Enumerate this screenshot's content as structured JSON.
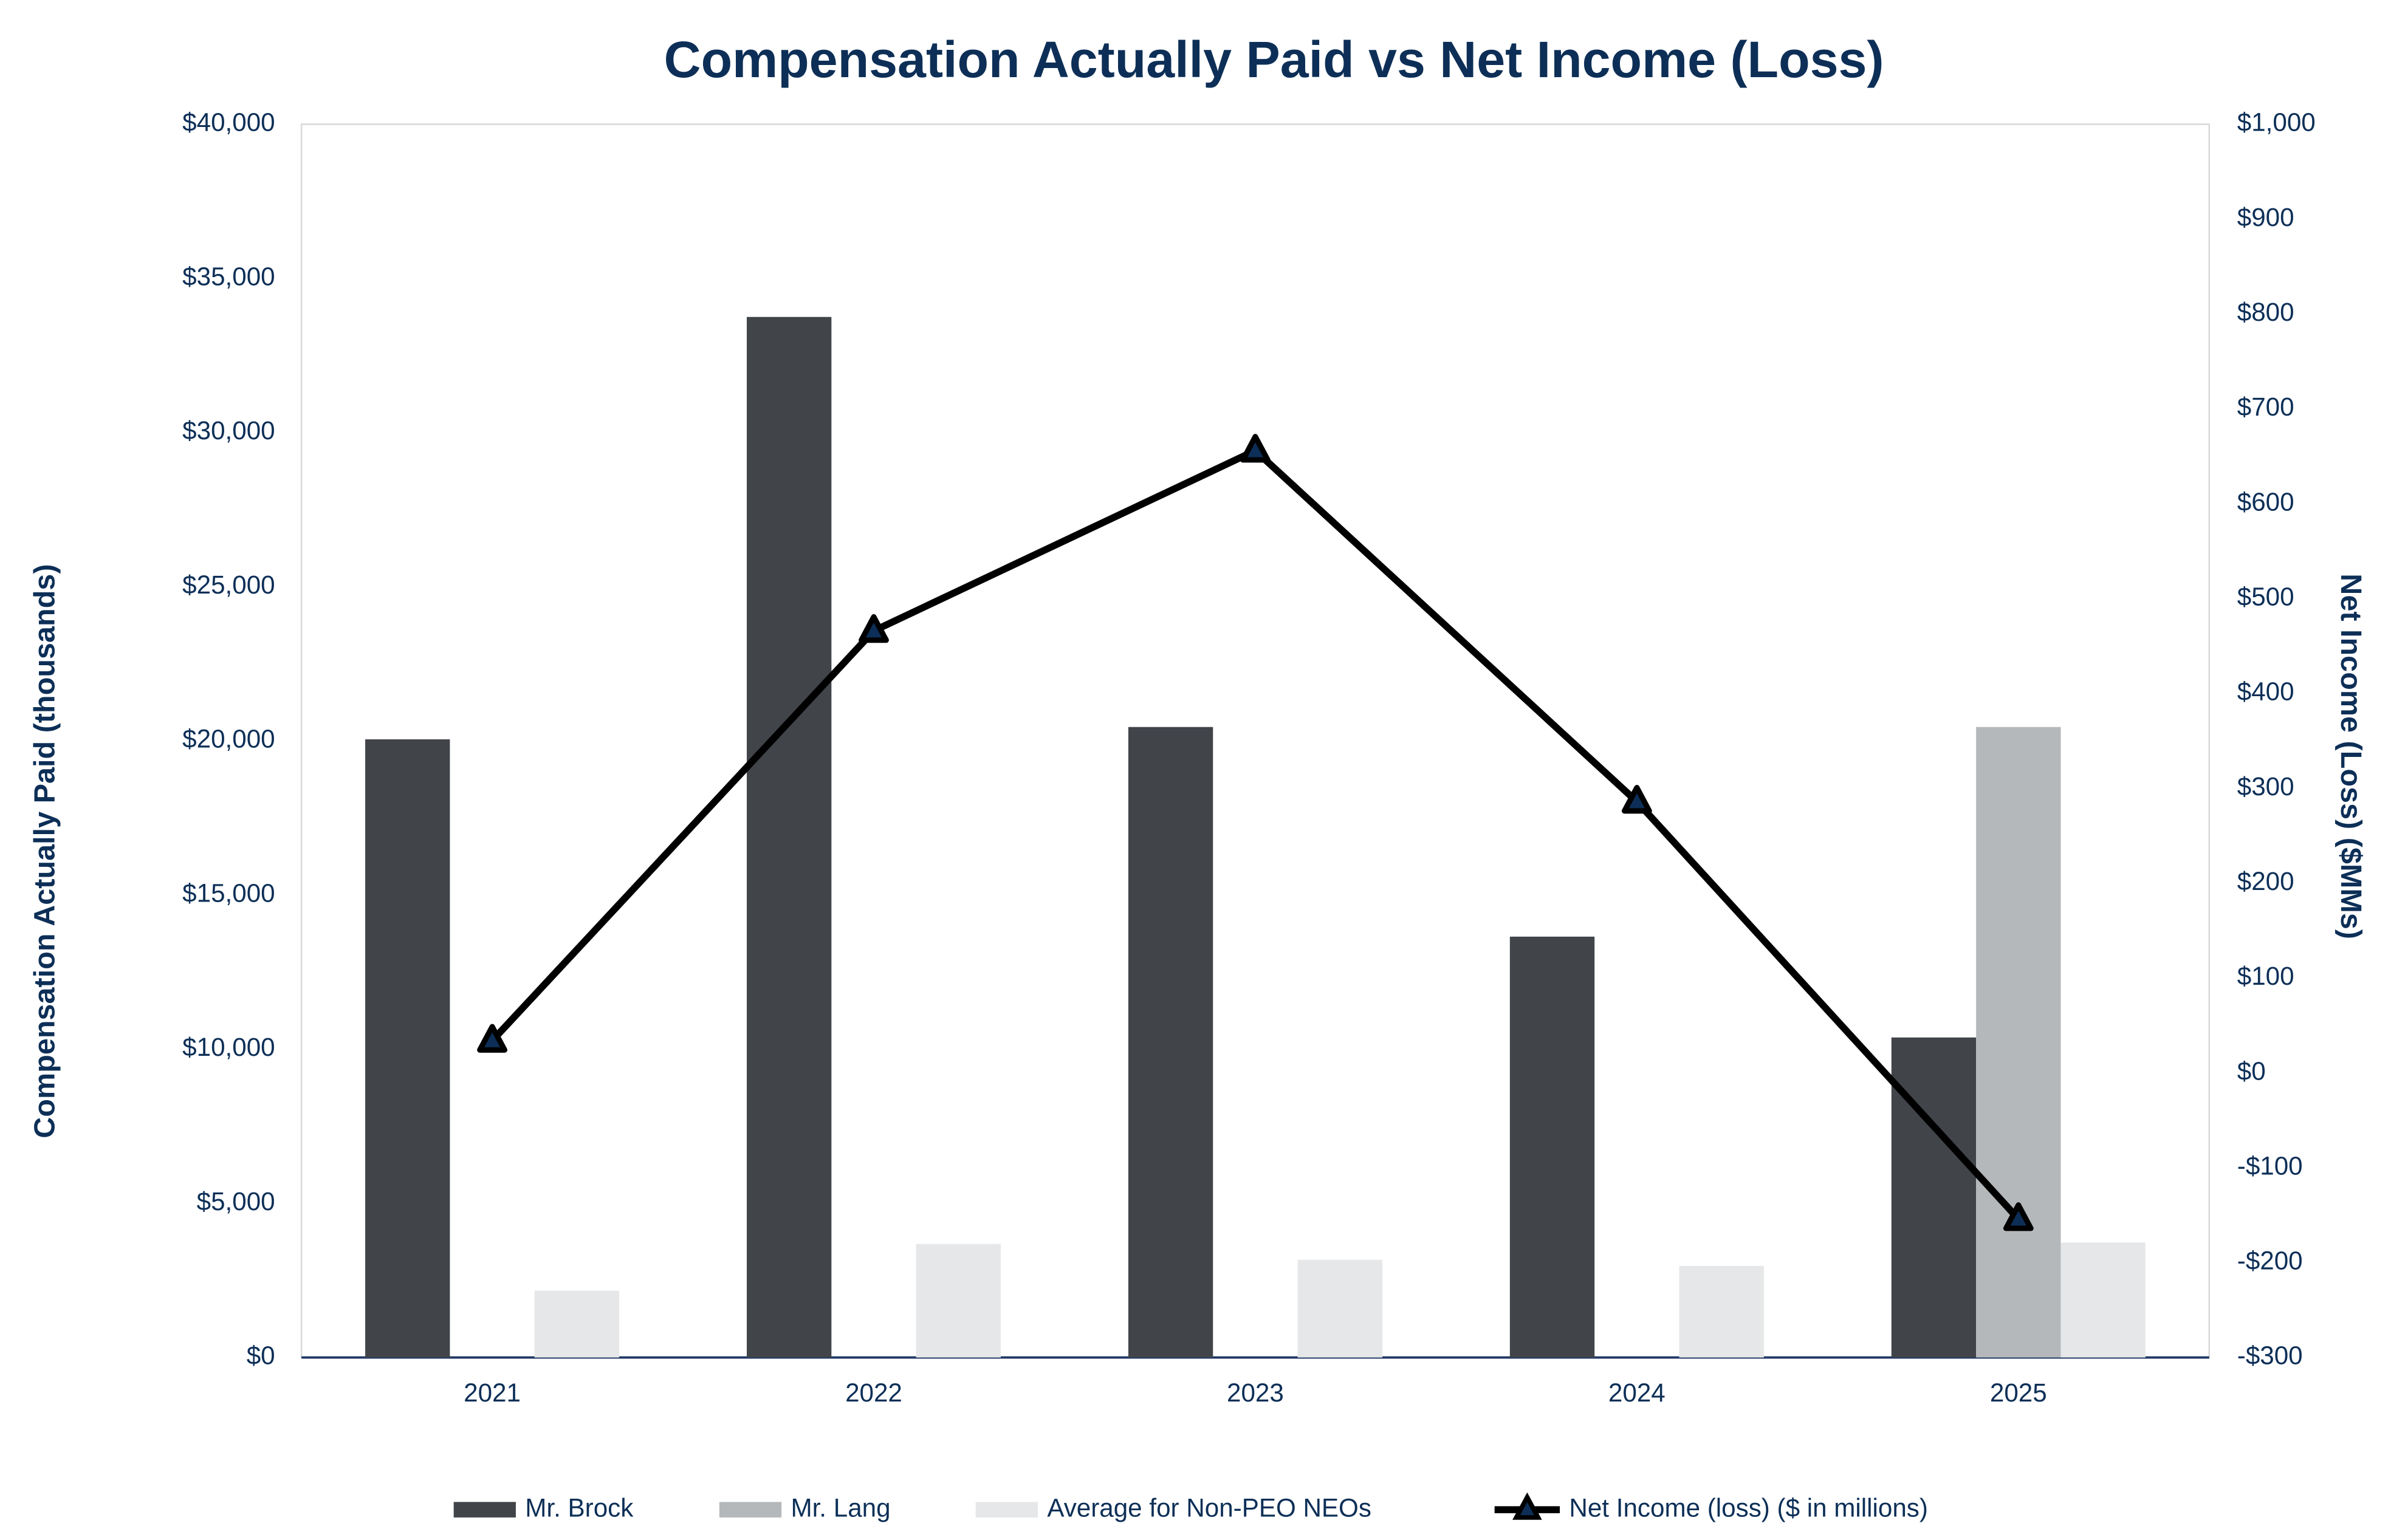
{
  "chart_data": {
    "type": "bar",
    "title": "Compensation Actually Paid vs Net Income (Loss)",
    "y_label": "Compensation Actually Paid (thousands)",
    "y2_label": "Net Income (Loss) ($MMs)",
    "categories": [
      "2021",
      "2022",
      "2023",
      "2024",
      "2025"
    ],
    "series": [
      {
        "name": "Mr. Brock",
        "color": "#414449",
        "type": "bar",
        "values": [
          20050,
          33750,
          20450,
          13650,
          10380
        ]
      },
      {
        "name": "Mr. Lang",
        "color": "#b5b8bb",
        "type": "bar",
        "values": [
          null,
          null,
          null,
          null,
          20450
        ]
      },
      {
        "name": "Average for Non-PEO NEOs",
        "color": "#e6e7e8",
        "type": "bar",
        "values": [
          2170,
          3680,
          3170,
          2970,
          3730
        ]
      },
      {
        "name": "Net Income (loss) ($ in millions)",
        "color": "#000000",
        "marker_color": "#0d2f57",
        "type": "line",
        "axis": "y2",
        "values": [
          34,
          466,
          656,
          286,
          -154
        ]
      }
    ],
    "ylim": [
      0,
      40000
    ],
    "yticks": [
      {
        "value": 0,
        "label": "$0"
      },
      {
        "value": 5000,
        "label": "$5,000"
      },
      {
        "value": 10000,
        "label": "$10,000"
      },
      {
        "value": 15000,
        "label": "$15,000"
      },
      {
        "value": 20000,
        "label": "$20,000"
      },
      {
        "value": 25000,
        "label": "$25,000"
      },
      {
        "value": 30000,
        "label": "$30,000"
      },
      {
        "value": 35000,
        "label": "$35,000"
      },
      {
        "value": 40000,
        "label": "$40,000"
      }
    ],
    "y2lim": [
      -300,
      1000
    ],
    "y2ticks": [
      {
        "value": -300,
        "label": "-$300"
      },
      {
        "value": -200,
        "label": "-$200"
      },
      {
        "value": -100,
        "label": "-$100"
      },
      {
        "value": 0,
        "label": "$0"
      },
      {
        "value": 100,
        "label": "$100"
      },
      {
        "value": 200,
        "label": "$200"
      },
      {
        "value": 300,
        "label": "$300"
      },
      {
        "value": 400,
        "label": "$400"
      },
      {
        "value": 500,
        "label": "$500"
      },
      {
        "value": 600,
        "label": "$600"
      },
      {
        "value": 700,
        "label": "$700"
      },
      {
        "value": 800,
        "label": "$800"
      },
      {
        "value": 900,
        "label": "$900"
      },
      {
        "value": 1000,
        "label": "$1,000"
      }
    ],
    "grid": false,
    "legend": "bottom"
  }
}
